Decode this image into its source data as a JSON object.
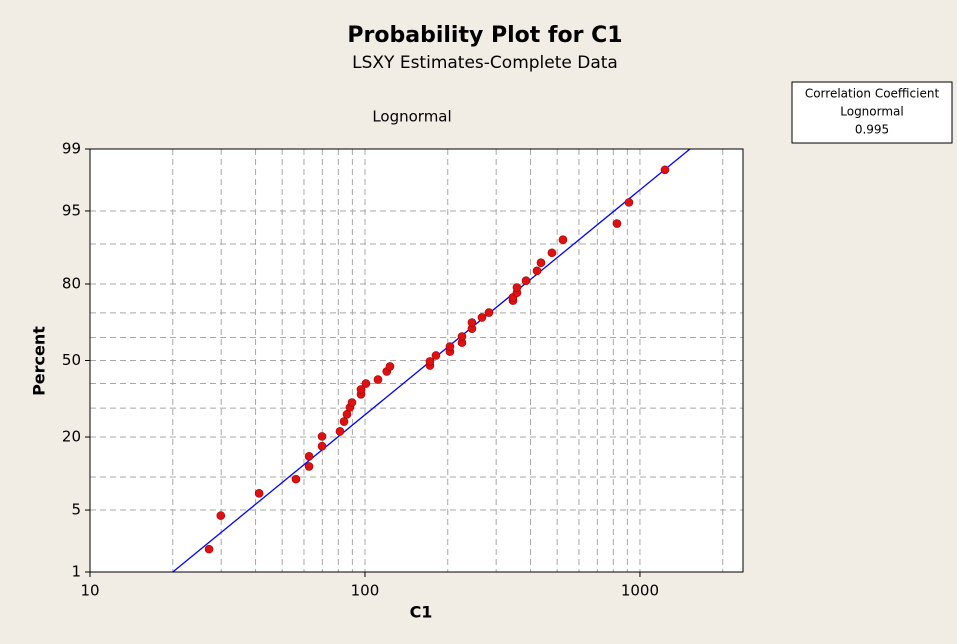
{
  "chart_data": {
    "type": "probability",
    "title": "Probability Plot for C1",
    "subtitle": "LSXY Estimates-Complete Data",
    "annotation": "Lognormal",
    "legend_box": {
      "lines": [
        "Correlation Coefficient",
        "Lognormal"
      ],
      "value": 0.995
    },
    "x_label": "C1",
    "y_label": "Percent",
    "x_scale": "log",
    "y_scale": "probability",
    "xlim": [
      10,
      2370
    ],
    "ylim": [
      1,
      99
    ],
    "xticks": [
      10,
      100,
      1000
    ],
    "yticks": [
      1,
      5,
      20,
      50,
      80,
      95,
      99
    ],
    "xgrid": [
      20,
      30,
      40,
      50,
      60,
      70,
      80,
      90,
      100,
      200,
      300,
      400,
      500,
      600,
      700,
      800,
      900,
      1000,
      2000
    ],
    "ygrid": [
      5,
      10,
      20,
      30,
      40,
      50,
      60,
      70,
      80,
      90,
      95
    ],
    "series": [
      {
        "color": "#e01010",
        "x": [
          27.1,
          29.9,
          41.2,
          56.1,
          62.6,
          62.6,
          69.8,
          69.8,
          81.1,
          83.9,
          86.0,
          88.2,
          89.7,
          96.7,
          96.7,
          100.8,
          111.5,
          120.0,
          123.3,
          172.3,
          172.3,
          181.2,
          203.7,
          203.7,
          225.3,
          225.3,
          244.9,
          244.9,
          266.4,
          282.4,
          345.3,
          345.3,
          357.0,
          357.0,
          385.1,
          422.3,
          436.5,
          478.6,
          524.8,
          825,
          912,
          1233
        ],
        "values": [
          1.9,
          4.4,
          7.2,
          9.6,
          12.2,
          14.6,
          17.3,
          20.2,
          21.8,
          25.1,
          27.7,
          30.3,
          32.2,
          35.5,
          37.5,
          40.0,
          41.7,
          45.2,
          47.4,
          47.8,
          49.6,
          52.2,
          53.9,
          56.1,
          57.8,
          60.4,
          63.7,
          66.2,
          68.2,
          70.1,
          74.5,
          75.6,
          77.2,
          78.9,
          81.0,
          83.8,
          85.9,
          88.2,
          90.8,
          93.4,
          95.9,
          98.2
        ]
      }
    ],
    "fit_line": {
      "color": "#0000ff",
      "x": [
        20.0,
        1520
      ],
      "values": [
        1,
        99
      ]
    }
  }
}
